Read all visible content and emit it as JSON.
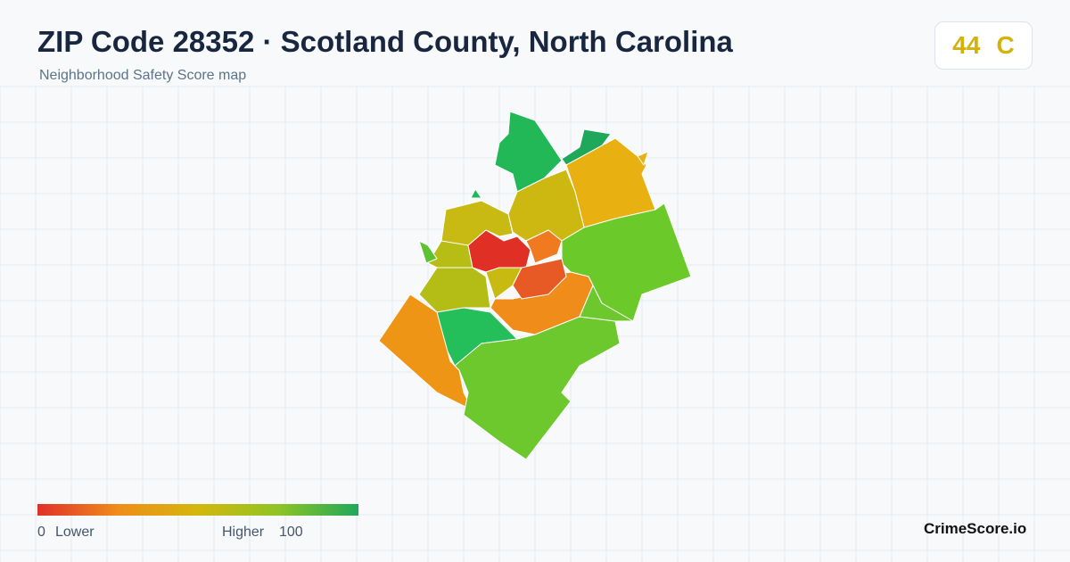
{
  "header": {
    "title": "ZIP Code 28352 · Scotland County, North Carolina",
    "subtitle": "Neighborhood Safety Score map"
  },
  "score": {
    "value": "44",
    "grade": "C"
  },
  "legend": {
    "min": "0",
    "min_label": "Lower",
    "max_label": "Higher",
    "max": "100"
  },
  "brand": "CrimeScore.io"
}
